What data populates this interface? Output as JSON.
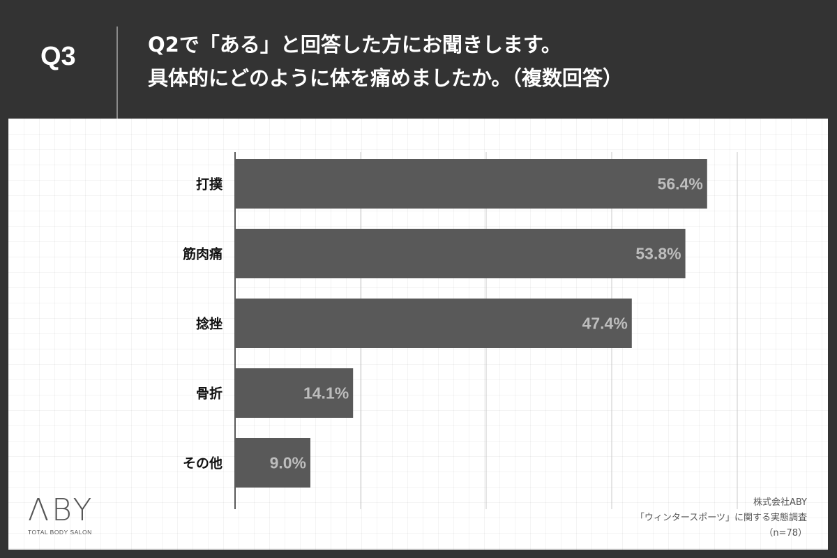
{
  "header": {
    "q_label": "Q3",
    "title_line1": "Q2で「ある」と回答した方にお聞きします。",
    "title_line2": "具体的にどのように体を痛めましたか。（複数回答）"
  },
  "chart_data": {
    "type": "bar",
    "orientation": "horizontal",
    "categories": [
      "打撲",
      "筋肉痛",
      "捻挫",
      "骨折",
      "その他"
    ],
    "values": [
      56.4,
      53.8,
      47.4,
      14.1,
      9.0
    ],
    "value_labels": [
      "56.4%",
      "53.8%",
      "47.4%",
      "14.1%",
      "9.0%"
    ],
    "xlim": [
      0,
      60
    ],
    "gridlines": [
      15,
      30,
      45,
      60
    ],
    "bar_color": "#595959",
    "label_color": "#bdbdbd"
  },
  "logo": {
    "mark": "ΛBY",
    "sub": "TOTAL BODY SALON"
  },
  "source": {
    "company": "株式会社ABY",
    "survey": "「ウィンタースポーツ」に関する実態調査",
    "n": "（n=78）"
  }
}
